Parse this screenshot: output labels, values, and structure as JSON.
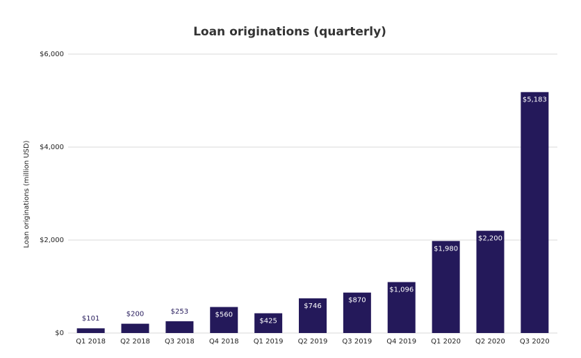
{
  "chart_data": {
    "type": "bar",
    "title": "Loan originations (quarterly)",
    "y_label": "Loan originations (million USD)",
    "categories": [
      "Q1 2018",
      "Q2 2018",
      "Q3 2018",
      "Q4 2018",
      "Q1 2019",
      "Q2 2019",
      "Q3 2019",
      "Q4 2019",
      "Q1 2020",
      "Q2 2020",
      "Q3 2020"
    ],
    "values": [
      101,
      200,
      253,
      560,
      425,
      746,
      870,
      1096,
      1980,
      2200,
      5183
    ],
    "value_labels": [
      "$101",
      "$200",
      "$253",
      "$560",
      "$425",
      "$746",
      "$870",
      "$1,096",
      "$1,980",
      "$2,200",
      "$5,183"
    ],
    "color": "#24195a",
    "ylim": [
      0,
      6000
    ],
    "yticks": [
      {
        "value": 0,
        "label": "$0"
      },
      {
        "value": 2000,
        "label": "$2,000"
      },
      {
        "value": 4000,
        "label": "$4,000"
      },
      {
        "value": 6000,
        "label": "$6,000"
      }
    ],
    "grid": true
  }
}
